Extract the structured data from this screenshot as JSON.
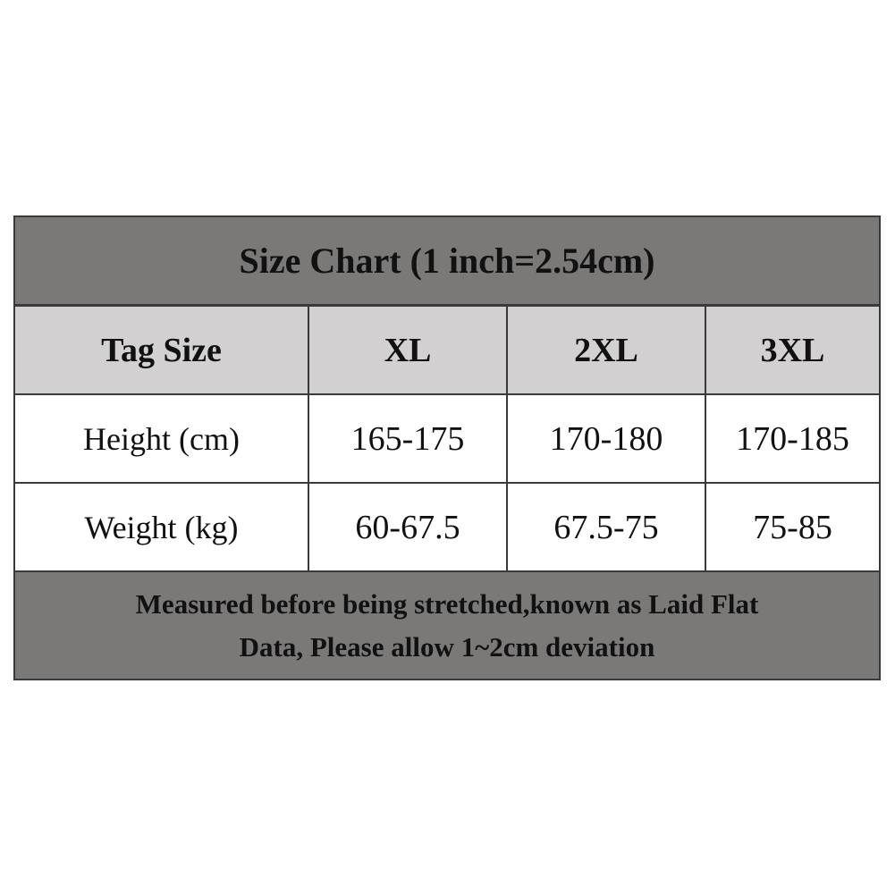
{
  "title": "Size Chart (1 inch=2.54cm)",
  "header": [
    "Tag Size",
    "XL",
    "2XL",
    "3XL"
  ],
  "rows": [
    [
      "Height (cm)",
      "165-175",
      "170-180",
      "170-185"
    ],
    [
      "Weight (kg)",
      "60-67.5",
      "67.5-75",
      "75-85"
    ]
  ],
  "footer": {
    "line1": "Measured before being stretched,known as Laid Flat",
    "line2": "Data, Please allow 1~2cm deviation"
  },
  "colors": {
    "title_bg": "#7b7978",
    "header_bg": "#d2d0d1",
    "border": "#3a3a3a"
  }
}
